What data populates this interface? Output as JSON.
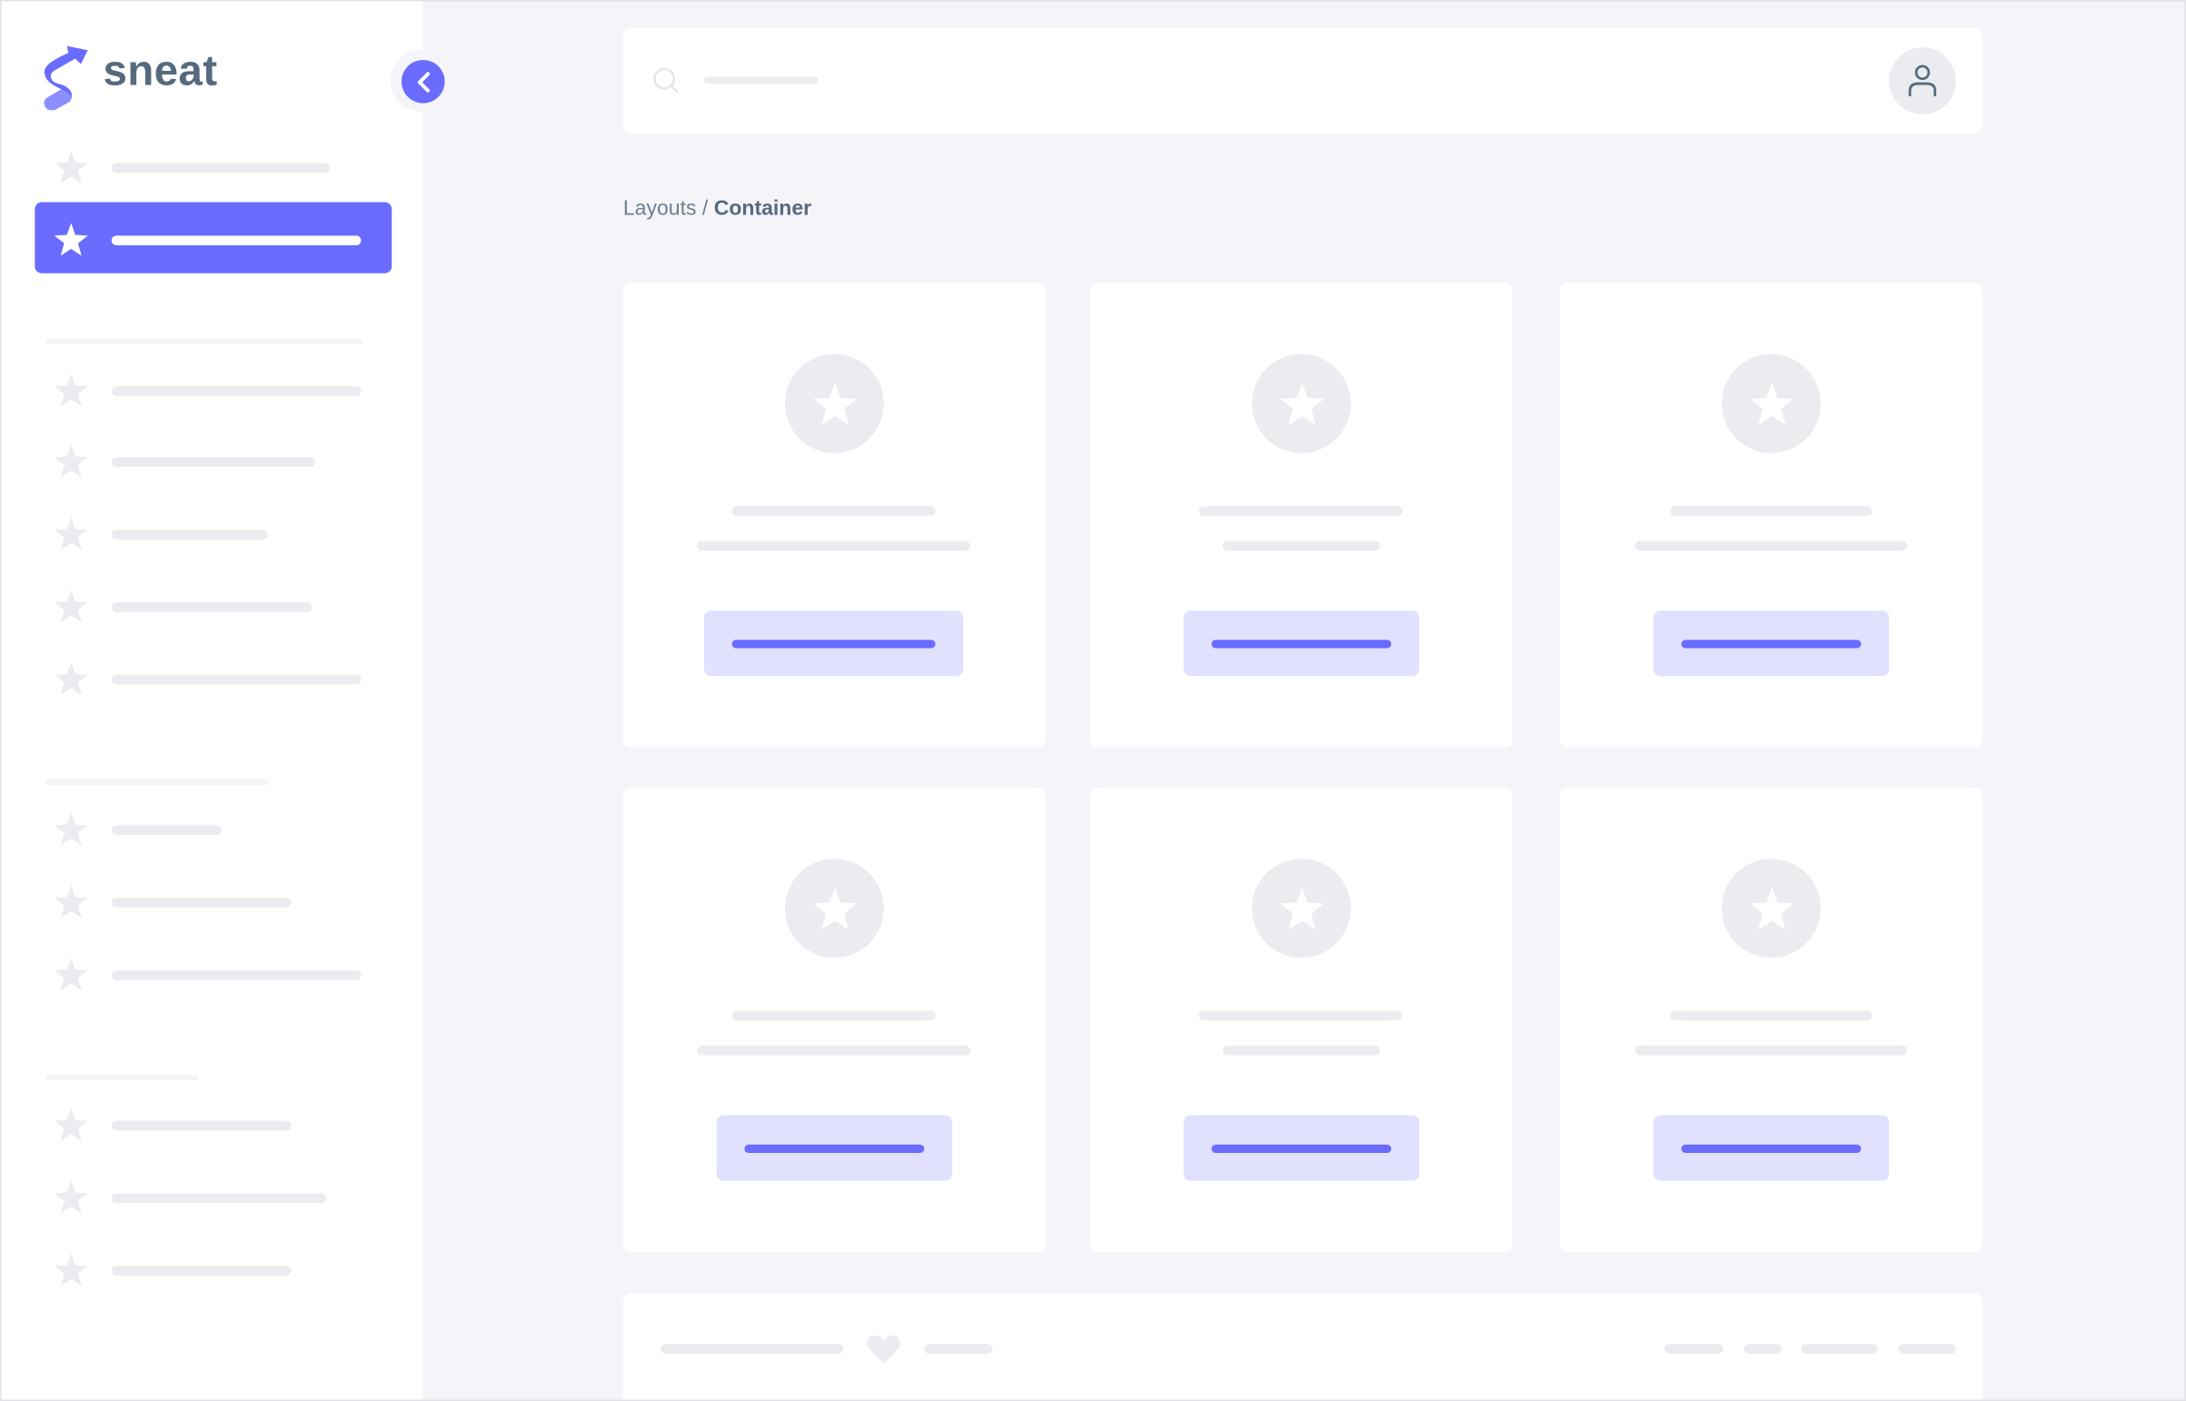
{
  "app": {
    "brand": "sneat"
  },
  "colors": {
    "primary": "#696cff",
    "primary_light": "#e1e1ff",
    "skeleton": "#ebecf0",
    "text": "#566a7f",
    "background": "#f4f4f9"
  },
  "sidebar": {
    "collapse_icon": "chevron-left-icon",
    "item_icon": "star-icon",
    "active_index": 1
  },
  "header": {
    "search_icon": "search-icon",
    "avatar_icon": "user-icon"
  },
  "breadcrumb": {
    "parent": "Layouts",
    "separator": "/",
    "current": "Container"
  },
  "cards": {
    "count": 6,
    "icon": "star-icon"
  },
  "footer": {
    "icon": "heart-icon"
  }
}
